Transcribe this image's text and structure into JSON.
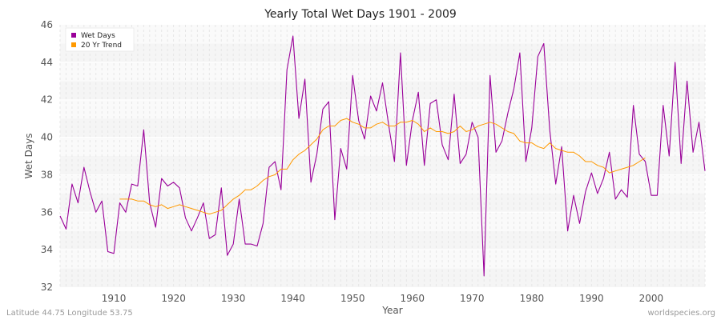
{
  "chart_data": {
    "type": "line",
    "title": "Yearly Total Wet Days 1901 - 2009",
    "xlabel": "Year",
    "ylabel": "Wet Days",
    "xlim": [
      1901,
      2009
    ],
    "ylim": [
      32,
      46
    ],
    "x_ticks": [
      1910,
      1920,
      1930,
      1940,
      1950,
      1960,
      1970,
      1980,
      1990,
      2000
    ],
    "y_ticks": [
      32,
      34,
      36,
      38,
      40,
      42,
      44,
      46
    ],
    "grid": true,
    "legend_position": "top-left",
    "series": [
      {
        "name": "Wet Days",
        "color": "#990099",
        "x_start": 1901,
        "values": [
          35.8,
          35.1,
          37.5,
          36.5,
          38.4,
          37.1,
          36.0,
          36.6,
          33.9,
          33.8,
          36.5,
          36.0,
          37.5,
          37.4,
          40.4,
          36.5,
          35.2,
          37.8,
          37.4,
          37.6,
          37.3,
          35.7,
          35.0,
          35.7,
          36.5,
          34.6,
          34.8,
          37.3,
          33.7,
          34.3,
          36.7,
          34.3,
          34.3,
          34.2,
          35.4,
          38.4,
          38.7,
          37.2,
          43.6,
          45.4,
          41.0,
          43.1,
          37.6,
          39.1,
          41.5,
          41.9,
          35.6,
          39.4,
          38.3,
          43.3,
          40.9,
          39.9,
          42.2,
          41.4,
          42.9,
          40.7,
          38.7,
          44.5,
          38.5,
          40.9,
          42.4,
          38.5,
          41.8,
          42.0,
          39.6,
          38.8,
          42.3,
          38.6,
          39.1,
          40.8,
          40.0,
          32.6,
          43.3,
          39.2,
          39.8,
          41.3,
          42.6,
          44.5,
          38.7,
          40.5,
          44.3,
          45.0,
          40.4,
          37.5,
          39.5,
          35.0,
          36.9,
          35.4,
          37.1,
          38.1,
          37.0,
          37.8,
          39.2,
          36.7,
          37.2,
          36.8,
          41.7,
          39.1,
          38.7,
          36.9,
          36.9,
          41.7,
          39.0,
          44.0,
          38.6,
          43.0,
          39.2,
          40.8,
          38.2
        ]
      },
      {
        "name": "20 Yr Trend",
        "color": "#ff9900",
        "x_start": 1911,
        "values": [
          36.7,
          36.7,
          36.7,
          36.6,
          36.6,
          36.4,
          36.3,
          36.4,
          36.2,
          36.3,
          36.4,
          36.3,
          36.2,
          36.1,
          36.0,
          35.9,
          36.0,
          36.1,
          36.4,
          36.7,
          36.9,
          37.2,
          37.2,
          37.4,
          37.7,
          37.9,
          38.0,
          38.3,
          38.3,
          38.8,
          39.1,
          39.3,
          39.6,
          39.9,
          40.4,
          40.6,
          40.6,
          40.9,
          41.0,
          40.8,
          40.7,
          40.5,
          40.5,
          40.7,
          40.8,
          40.6,
          40.6,
          40.8,
          40.8,
          40.9,
          40.7,
          40.3,
          40.5,
          40.3,
          40.3,
          40.2,
          40.3,
          40.6,
          40.3,
          40.4,
          40.6,
          40.7,
          40.8,
          40.7,
          40.5,
          40.3,
          40.2,
          39.8,
          39.7,
          39.7,
          39.5,
          39.4,
          39.7,
          39.4,
          39.3,
          39.2,
          39.2,
          39.0,
          38.7,
          38.7,
          38.5,
          38.4,
          38.1,
          38.2,
          38.3,
          38.4,
          38.5,
          38.7,
          38.9
        ]
      }
    ]
  },
  "footer": {
    "left": "Latitude 44.75 Longitude 53.75",
    "right": "worldspecies.org"
  }
}
